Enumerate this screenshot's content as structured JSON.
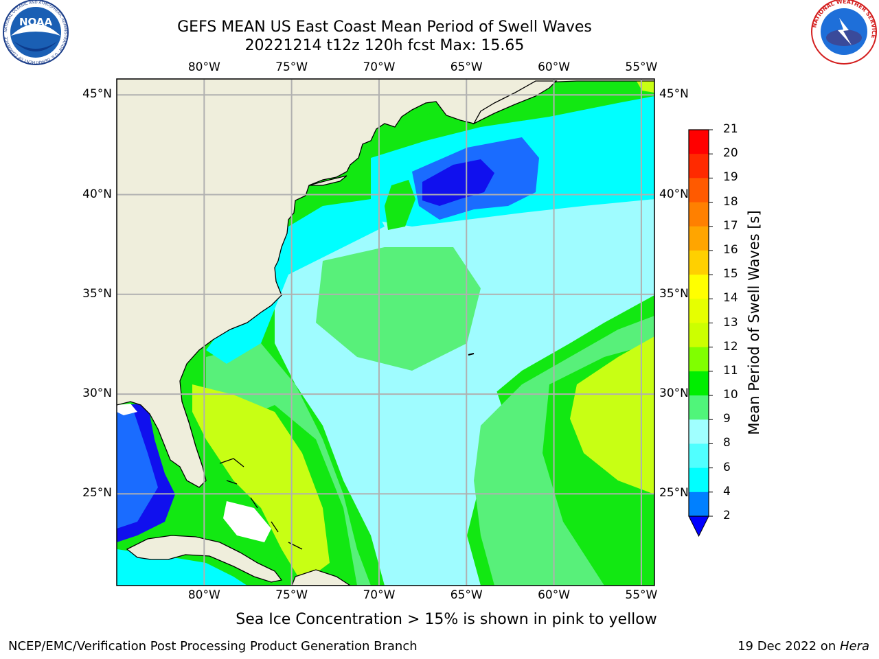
{
  "title": {
    "line1": "GEFS MEAN US East Coast Mean Period of Swell Waves",
    "line2": "20221214 t12z 120h fcst   Max: 15.65"
  },
  "axes": {
    "lon_labels": [
      "80°W",
      "75°W",
      "70°W",
      "65°W",
      "60°W",
      "55°W"
    ],
    "lon_values": [
      -80,
      -75,
      -70,
      -65,
      -60,
      -55
    ],
    "lat_labels": [
      "45°N",
      "40°N",
      "35°N",
      "30°N",
      "25°N"
    ],
    "lat_values": [
      45,
      40,
      35,
      30,
      25
    ],
    "lon_range": [
      -85,
      -54.25
    ],
    "lat_range": [
      20.4,
      45.8
    ],
    "grid": true
  },
  "colorbar": {
    "label": "Mean Period of Swell Waves [s]",
    "ticks": [
      "21",
      "20",
      "19",
      "18",
      "17",
      "16",
      "15",
      "14",
      "13",
      "12",
      "11",
      "10",
      "9",
      "8",
      "6",
      "4",
      "2"
    ],
    "colors": [
      "#ff0000",
      "#ff2a00",
      "#ff5a00",
      "#ff8000",
      "#ffa500",
      "#ffd000",
      "#ffff00",
      "#e6ff00",
      "#ccff00",
      "#80ff00",
      "#00ee00",
      "#50f57a",
      "#a0ffff",
      "#50ffff",
      "#00ffff",
      "#0080ff",
      "#0000ff"
    ],
    "extend": "min"
  },
  "field_colors": {
    "land": "#efeedc",
    "deep_blue": "#1010ee",
    "blue": "#1a6cff",
    "cyan": "#00ffff",
    "light_cyan": "#9ffcff",
    "light_green": "#58f07a",
    "green": "#12e812",
    "yellow_green": "#c8ff14",
    "white": "#ffffff"
  },
  "note": "Sea Ice Concentration > 15% is shown in pink to yellow",
  "footer": {
    "left": "NCEP/EMC/Verification Post Processing Product Generation Branch",
    "right_prefix": "19 Dec 2022 on ",
    "right_host": "Hera"
  },
  "logos": {
    "left": "noaa-logo",
    "right": "nws-logo",
    "left_text": "NOAA",
    "left_ring_text": "NATIONAL OCEANIC AND ATMOSPHERIC ADMINISTRATION · U.S. DEPARTMENT OF COMMERCE",
    "right_ring_text": "NATIONAL WEATHER SERVICE"
  }
}
